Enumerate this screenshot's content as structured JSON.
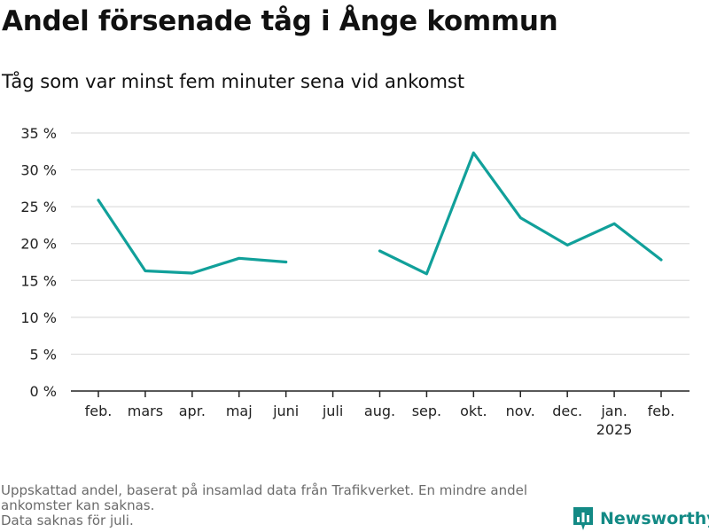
{
  "title": "Andel försenade tåg i Ånge kommun",
  "subtitle": "Tåg som var minst fem minuter sena vid ankomst",
  "footnote": [
    "Uppskattad andel, baserat på insamlad data från Trafikverket. En mindre andel",
    "ankomster kan saknas.",
    "Data saknas för juli."
  ],
  "brand": {
    "name": "Newsworthy",
    "icon": "bar-chart-speech-bubble-icon"
  },
  "colors": {
    "line": "#11a09a",
    "grid": "#dddddd",
    "axis": "#222222",
    "brand": "#138a85",
    "footnote": "#6b6b6b"
  },
  "chart_data": {
    "type": "line",
    "categories": [
      "feb.",
      "mars",
      "apr.",
      "maj",
      "juni",
      "juli",
      "aug.",
      "sep.",
      "okt.",
      "nov.",
      "dec.",
      "jan.",
      "feb."
    ],
    "category_sublabels": [
      "",
      "",
      "",
      "",
      "",
      "",
      "",
      "",
      "",
      "",
      "",
      "2025",
      ""
    ],
    "series": [
      {
        "values": [
          25.9,
          16.3,
          16.0,
          18.0,
          17.5,
          null,
          19.0,
          15.9,
          32.3,
          23.5,
          19.8,
          22.7,
          17.8
        ]
      }
    ],
    "yticks": [
      0,
      5,
      10,
      15,
      20,
      25,
      30,
      35
    ],
    "ytick_labels": [
      "0 %",
      "5 %",
      "10 %",
      "15 %",
      "20 %",
      "25 %",
      "30 %",
      "35 %"
    ],
    "ylim": [
      0,
      35
    ],
    "xlabel": "",
    "ylabel": "",
    "grid": true,
    "legend": "none"
  }
}
